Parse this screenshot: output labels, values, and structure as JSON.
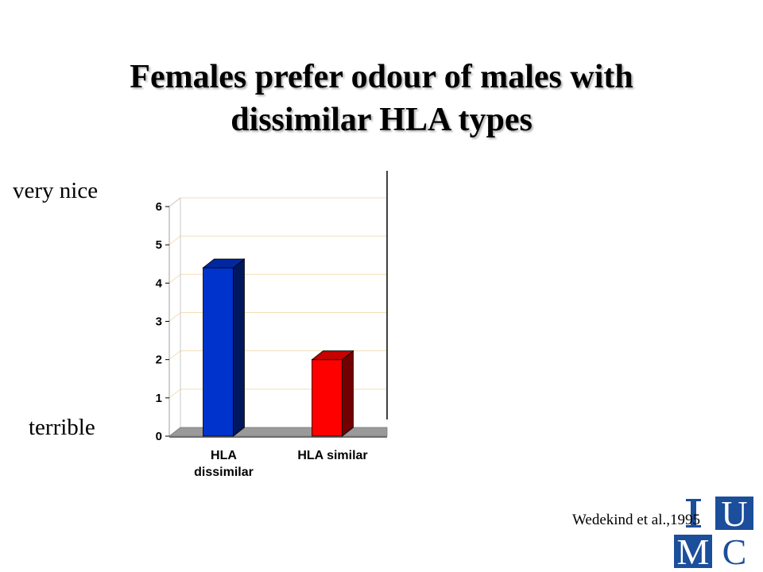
{
  "slide": {
    "title_line1": "Females prefer odour of males with",
    "title_line2": "dissimilar HLA types",
    "scale_top": "very nice",
    "scale_bottom": "terrible",
    "citation": "Wedekind et al.,1995"
  },
  "logo": {
    "letters": [
      "U",
      "M",
      "C"
    ]
  },
  "chart_data": {
    "type": "bar",
    "style": "3d",
    "categories": [
      [
        "HLA",
        "dissimilar"
      ],
      [
        "HLA similar"
      ]
    ],
    "values": [
      4.4,
      2.0
    ],
    "colors": [
      "#0033cc",
      "#ff0000"
    ],
    "ylim": [
      0,
      6
    ],
    "yticks": [
      "0",
      "1",
      "2",
      "3",
      "4",
      "5",
      "6"
    ],
    "grid": true,
    "legend": "none"
  }
}
